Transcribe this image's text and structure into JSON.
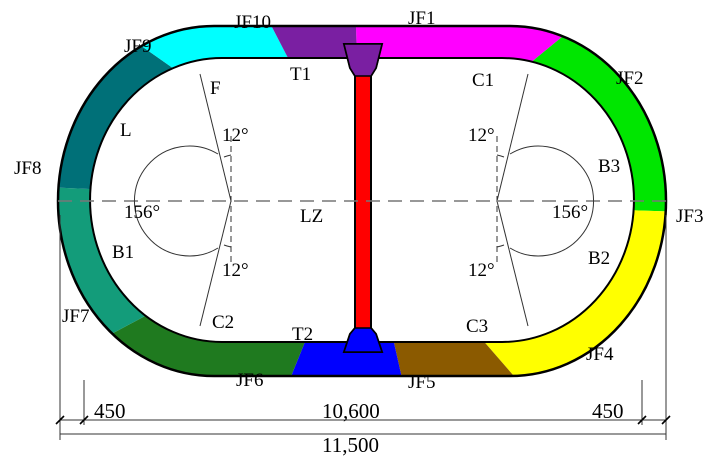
{
  "segments": [
    {
      "label": "JF1",
      "color": "#ff00ff"
    },
    {
      "label": "JF2",
      "color": "#00e600"
    },
    {
      "label": "JF3",
      "color": "#ffff00"
    },
    {
      "label": "JF4",
      "color": "#8b5a00"
    },
    {
      "label": "JF5",
      "color": "#0000ff"
    },
    {
      "label": "JF6",
      "color": "#1f7a1f"
    },
    {
      "label": "JF7",
      "color": "#139c7a"
    },
    {
      "label": "JF8",
      "color": "#007078"
    },
    {
      "label": "JF9",
      "color": "#00ffff"
    },
    {
      "label": "JF10",
      "color": "#7a1fa2"
    }
  ],
  "region_labels": {
    "T1": "T1",
    "T2": "T2",
    "C1": "C1",
    "C2": "C2",
    "C3": "C3",
    "B1": "B1",
    "B2": "B2",
    "B3": "B3",
    "F": "F",
    "L": "L",
    "LZ": "LZ"
  },
  "angles": {
    "upper_left": "12°",
    "lower_left": "12°",
    "upper_right": "12°",
    "lower_right": "12°",
    "left_central": "156°",
    "right_central": "156°"
  },
  "dimensions": {
    "left_offset": "450",
    "inner_span": "10,600",
    "right_offset": "450",
    "total_width": "11,500"
  },
  "colors": {
    "center_wall": "#ff0000",
    "outline": "#000000"
  }
}
